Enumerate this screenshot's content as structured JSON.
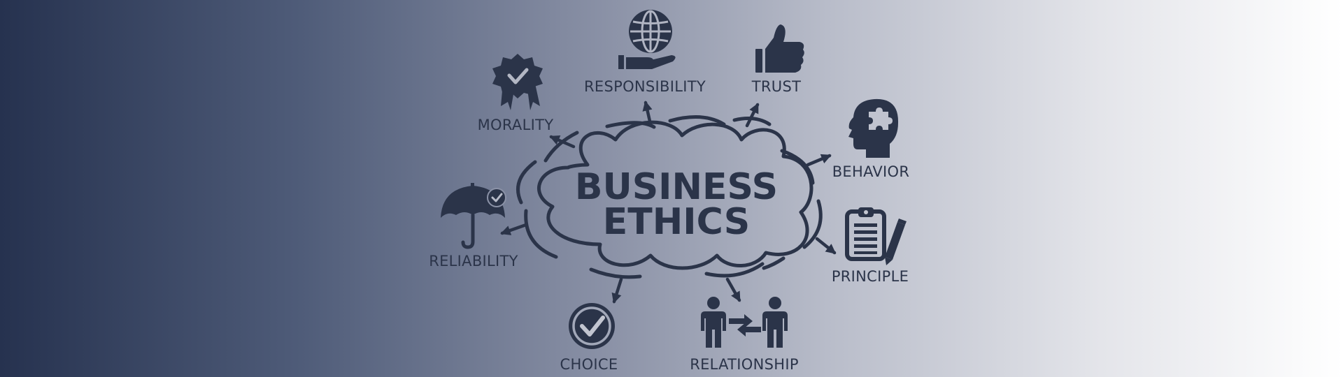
{
  "center": {
    "line1": "BUSINESS",
    "line2": "ETHICS"
  },
  "nodes": {
    "responsibility": {
      "label": "RESPONSIBILITY",
      "icon": "globe-in-hand-icon"
    },
    "trust": {
      "label": "TRUST",
      "icon": "thumbs-up-icon"
    },
    "morality": {
      "label": "MORALITY",
      "icon": "award-ribbon-icon"
    },
    "behavior": {
      "label": "BEHAVIOR",
      "icon": "head-puzzle-icon"
    },
    "reliability": {
      "label": "RELIABILITY",
      "icon": "umbrella-check-icon"
    },
    "principle": {
      "label": "PRINCIPLE",
      "icon": "clipboard-pencil-icon"
    },
    "choice": {
      "label": "CHOICE",
      "icon": "check-circle-icon"
    },
    "relationship": {
      "label": "RELATIONSHIP",
      "icon": "people-exchange-icon"
    }
  },
  "colors": {
    "ink": "#2b3449",
    "gradient_start": "#26324f",
    "gradient_end": "#ffffff"
  }
}
